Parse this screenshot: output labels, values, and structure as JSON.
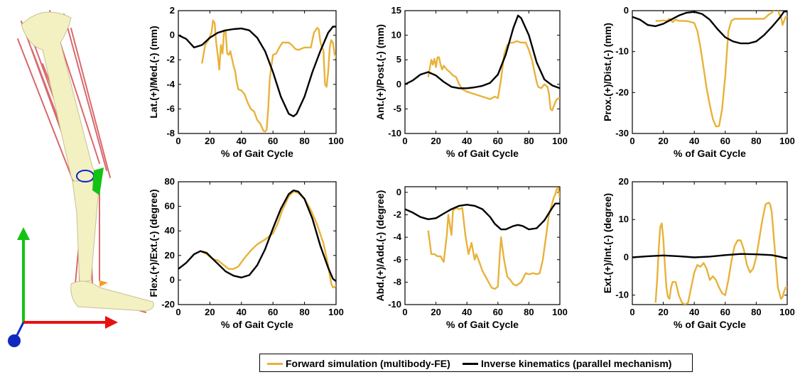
{
  "colors": {
    "forward": "#e8b23a",
    "inverse": "#000000",
    "axis_x_arrow": "#e81010",
    "axis_y_arrow": "#12c312",
    "axis_origin": "#1028c0",
    "bone": "#f3f0c2",
    "muscle": "#d9686c"
  },
  "legend": {
    "forward_label": "Forward simulation (multibody-FE)",
    "inverse_label": "Inverse kinematics (parallel mechanism)"
  },
  "chart_data": [
    {
      "type": "line",
      "title": "",
      "xlabel": "% of Gait Cycle",
      "ylabel": "Lat.(+)/Med.(-) (mm)",
      "xlim": [
        0,
        100
      ],
      "ylim": [
        -8,
        2
      ],
      "xticks": [
        "0",
        "20",
        "40",
        "60",
        "80",
        "100"
      ],
      "yticks": [
        "2",
        "0",
        "-2",
        "-4",
        "-6",
        "-8"
      ],
      "series": [
        {
          "name": "Forward simulation (multibody-FE)",
          "color": "#e8b23a",
          "x": [
            15,
            17,
            19,
            21,
            22,
            23,
            24,
            25,
            26,
            27,
            28,
            29,
            30,
            31,
            32,
            33,
            34,
            35,
            36,
            37,
            38,
            40,
            42,
            44,
            46,
            48,
            50,
            52,
            54,
            55,
            56,
            57,
            58,
            59,
            60,
            62,
            64,
            66,
            68,
            70,
            72,
            74,
            76,
            78,
            80,
            82,
            84,
            86,
            88,
            89,
            90,
            91,
            92,
            93,
            94,
            95,
            96,
            97,
            98,
            99,
            100
          ],
          "y": [
            -2.3,
            -0.8,
            -0.4,
            0.2,
            1.2,
            1.0,
            -0.6,
            -1.6,
            -2.8,
            -0.8,
            -1.5,
            0.4,
            0.3,
            -1.5,
            -1.6,
            -1.3,
            -1.9,
            -2.5,
            -2.9,
            -3.8,
            -4.4,
            -4.5,
            -4.8,
            -5.5,
            -6.0,
            -6.2,
            -6.9,
            -7.2,
            -7.8,
            -7.85,
            -7.7,
            -6.0,
            -3.5,
            -2.5,
            -1.6,
            -1.5,
            -1.0,
            -0.6,
            -0.6,
            -0.6,
            -0.8,
            -1.1,
            -1.2,
            -1.1,
            -1.0,
            -1.0,
            -1.0,
            0.2,
            0.6,
            0.5,
            -0.5,
            -1.0,
            -1.2,
            -4.0,
            -4.2,
            -3.0,
            -1.0,
            -0.4,
            -0.6,
            -1.5,
            -1.8
          ]
        },
        {
          "name": "Inverse kinematics (parallel mechanism)",
          "color": "#000000",
          "x": [
            0,
            5,
            10,
            15,
            20,
            25,
            30,
            35,
            40,
            45,
            50,
            55,
            60,
            65,
            70,
            73,
            75,
            80,
            85,
            90,
            95,
            98,
            100
          ],
          "y": [
            0.0,
            -0.3,
            -1.0,
            -0.8,
            -0.2,
            0.2,
            0.4,
            0.5,
            0.55,
            0.4,
            -0.2,
            -1.3,
            -3.0,
            -5.0,
            -6.4,
            -6.6,
            -6.4,
            -5.0,
            -3.0,
            -1.3,
            0.2,
            0.7,
            0.7
          ]
        }
      ]
    },
    {
      "type": "line",
      "title": "",
      "xlabel": "% of Gait Cycle",
      "ylabel": "Ant.(+)/Post.(-) (mm)",
      "xlim": [
        0,
        100
      ],
      "ylim": [
        -10,
        15
      ],
      "xticks": [
        "0",
        "20",
        "40",
        "60",
        "80",
        "100"
      ],
      "yticks": [
        "15",
        "10",
        "5",
        "0",
        "-5",
        "-10"
      ],
      "series": [
        {
          "name": "Forward simulation (multibody-FE)",
          "color": "#e8b23a",
          "x": [
            15,
            17,
            18,
            19,
            20,
            21,
            22,
            23,
            24,
            25,
            27,
            29,
            31,
            33,
            35,
            37,
            40,
            45,
            50,
            55,
            58,
            60,
            62,
            64,
            66,
            68,
            70,
            72,
            75,
            78,
            80,
            82,
            84,
            85,
            86,
            88,
            90,
            92,
            93,
            94,
            95,
            96,
            98,
            100
          ],
          "y": [
            1.5,
            5.0,
            4.0,
            5.2,
            3.5,
            5.5,
            5.5,
            4.0,
            3.0,
            3.8,
            3.0,
            2.5,
            1.8,
            1.5,
            0.0,
            -1.0,
            -1.5,
            -2.0,
            -2.5,
            -3.0,
            -2.5,
            -2.8,
            1.0,
            6.0,
            8.0,
            8.5,
            8.5,
            8.8,
            8.5,
            8.5,
            7.0,
            5.0,
            2.0,
            0.5,
            -0.5,
            -0.8,
            0.0,
            -0.5,
            -2.0,
            -5.0,
            -5.3,
            -4.5,
            -3.0,
            -2.8
          ]
        },
        {
          "name": "Inverse kinematics (parallel mechanism)",
          "color": "#000000",
          "x": [
            0,
            5,
            10,
            15,
            20,
            25,
            30,
            35,
            40,
            45,
            50,
            55,
            60,
            65,
            70,
            73,
            75,
            80,
            85,
            90,
            95,
            100
          ],
          "y": [
            0.0,
            0.8,
            2.0,
            2.5,
            1.8,
            0.5,
            -0.5,
            -0.8,
            -0.8,
            -0.6,
            -0.3,
            0.3,
            2.0,
            6.0,
            11.5,
            14.0,
            13.5,
            10.0,
            4.5,
            1.0,
            -0.2,
            -0.8
          ]
        }
      ]
    },
    {
      "type": "line",
      "title": "",
      "xlabel": "% of Gait Cycle",
      "ylabel": "Prox.(+)/Dist.(-) (mm)",
      "xlim": [
        0,
        100
      ],
      "ylim": [
        -30,
        0
      ],
      "xticks": [
        "0",
        "20",
        "40",
        "60",
        "80",
        "100"
      ],
      "yticks": [
        "0",
        "-10",
        "-20",
        "-30"
      ],
      "series": [
        {
          "name": "Forward simulation (multibody-FE)",
          "color": "#e8b23a",
          "x": [
            15,
            18,
            20,
            22,
            24,
            26,
            28,
            30,
            33,
            36,
            40,
            42,
            44,
            46,
            48,
            50,
            52,
            54,
            56,
            58,
            60,
            62,
            64,
            66,
            70,
            75,
            80,
            85,
            88,
            90,
            92,
            94,
            95,
            96,
            97,
            98,
            99,
            100
          ],
          "y": [
            -2.5,
            -2.5,
            -2.4,
            -2.5,
            -2.0,
            -2.8,
            -2.2,
            -2.5,
            -2.5,
            -2.6,
            -3.0,
            -5.0,
            -9.0,
            -14.0,
            -19.0,
            -23.0,
            -26.5,
            -28.3,
            -28.2,
            -24.0,
            -16.0,
            -5.0,
            -2.5,
            -2.0,
            -2.0,
            -2.0,
            -2.0,
            -2.0,
            -1.0,
            -0.5,
            0.2,
            0.3,
            -1.0,
            -1.5,
            -3.5,
            -2.5,
            -1.5,
            -1.5
          ]
        },
        {
          "name": "Inverse kinematics (parallel mechanism)",
          "color": "#000000",
          "x": [
            0,
            5,
            10,
            15,
            20,
            25,
            30,
            35,
            40,
            45,
            50,
            55,
            60,
            65,
            70,
            75,
            80,
            85,
            90,
            95,
            98,
            100
          ],
          "y": [
            -1.5,
            -2.2,
            -3.5,
            -3.8,
            -3.2,
            -2.2,
            -1.2,
            -0.5,
            -0.3,
            -0.8,
            -2.2,
            -4.5,
            -6.5,
            -7.5,
            -8.0,
            -8.0,
            -7.5,
            -6.0,
            -4.0,
            -1.8,
            -0.2,
            -0.2
          ]
        }
      ]
    },
    {
      "type": "line",
      "title": "",
      "xlabel": "% of Gait Cycle",
      "ylabel": "Flex.(+)/Ext.(-) (degree)",
      "xlim": [
        0,
        100
      ],
      "ylim": [
        -20,
        80
      ],
      "xticks": [
        "0",
        "20",
        "40",
        "60",
        "80",
        "100"
      ],
      "yticks": [
        "80",
        "60",
        "40",
        "20",
        "0",
        "-20"
      ],
      "series": [
        {
          "name": "Forward simulation (multibody-FE)",
          "color": "#e8b23a",
          "x": [
            15,
            18,
            20,
            22,
            25,
            28,
            30,
            32,
            35,
            38,
            42,
            46,
            50,
            55,
            60,
            63,
            66,
            70,
            73,
            76,
            80,
            84,
            88,
            92,
            95,
            96,
            97,
            98,
            99,
            100
          ],
          "y": [
            23,
            21,
            19,
            17,
            16,
            13,
            11,
            9,
            9,
            11,
            18,
            24,
            29,
            33,
            38,
            46,
            57,
            68,
            72,
            71,
            66,
            57,
            45,
            30,
            12,
            4,
            -3,
            -6,
            -6,
            -4
          ]
        },
        {
          "name": "Inverse kinematics (parallel mechanism)",
          "color": "#000000",
          "x": [
            0,
            5,
            10,
            14,
            18,
            22,
            26,
            30,
            35,
            40,
            45,
            50,
            55,
            60,
            65,
            70,
            73,
            76,
            80,
            85,
            90,
            95,
            98,
            100
          ],
          "y": [
            9,
            14,
            21,
            23.5,
            22,
            17,
            12,
            7,
            3.5,
            2,
            4,
            12,
            25,
            42,
            58,
            70,
            73,
            72,
            66,
            50,
            28,
            10,
            1,
            -1
          ]
        }
      ]
    },
    {
      "type": "line",
      "title": "",
      "xlabel": "% of Gait Cycle",
      "ylabel": "Abd.(+)/Add.(-) (degree)",
      "xlim": [
        0,
        100
      ],
      "ylim": [
        -10,
        0.5
      ],
      "xticks": [
        "0",
        "20",
        "40",
        "60",
        "80",
        "100"
      ],
      "yticks": [
        "0",
        "-2",
        "-4",
        "-6",
        "-8",
        "-10"
      ],
      "series": [
        {
          "name": "Forward simulation (multibody-FE)",
          "color": "#e8b23a",
          "x": [
            15,
            17,
            19,
            21,
            23,
            25,
            26,
            27,
            28,
            30,
            31,
            33,
            35,
            37,
            39,
            41,
            43,
            45,
            46,
            48,
            50,
            52,
            54,
            56,
            58,
            60,
            61,
            62,
            63,
            64,
            66,
            68,
            70,
            72,
            75,
            78,
            80,
            83,
            85,
            87,
            89,
            91,
            93,
            95,
            96,
            97,
            98,
            99,
            100
          ],
          "y": [
            -3.4,
            -5.5,
            -5.5,
            -5.7,
            -5.7,
            -6.2,
            -5.0,
            -3.8,
            -2.0,
            -3.8,
            -1.6,
            -1.4,
            -1.5,
            -1.4,
            -3.8,
            -5.5,
            -4.5,
            -6.0,
            -5.5,
            -6.2,
            -7.0,
            -7.5,
            -8.0,
            -8.5,
            -8.6,
            -8.4,
            -6.0,
            -4.0,
            -5.0,
            -6.0,
            -7.5,
            -7.8,
            -8.2,
            -8.3,
            -8.0,
            -7.2,
            -7.3,
            -7.2,
            -7.3,
            -7.2,
            -6.0,
            -4.0,
            -2.0,
            -1.0,
            -0.5,
            -0.2,
            0.3,
            0.4,
            -0.5
          ]
        },
        {
          "name": "Inverse kinematics (parallel mechanism)",
          "color": "#000000",
          "x": [
            0,
            5,
            10,
            15,
            20,
            25,
            30,
            35,
            40,
            45,
            50,
            55,
            58,
            62,
            65,
            70,
            73,
            76,
            80,
            85,
            90,
            95,
            97,
            100
          ],
          "y": [
            -1.5,
            -1.8,
            -2.2,
            -2.4,
            -2.3,
            -1.9,
            -1.5,
            -1.2,
            -1.1,
            -1.2,
            -1.5,
            -2.2,
            -2.8,
            -3.3,
            -3.3,
            -3.0,
            -2.9,
            -3.0,
            -3.3,
            -3.2,
            -2.5,
            -1.4,
            -1.0,
            -1.0
          ]
        }
      ]
    },
    {
      "type": "line",
      "title": "",
      "xlabel": "% of Gait Cycle",
      "ylabel": "Ext.(+)/Int.(-) (degree)",
      "xlim": [
        0,
        100
      ],
      "ylim": [
        -12.5,
        20
      ],
      "xticks": [
        "0",
        "20",
        "40",
        "60",
        "80",
        "100"
      ],
      "yticks": [
        "20",
        "10",
        "0",
        "-10"
      ],
      "series": [
        {
          "name": "Forward simulation (multibody-FE)",
          "color": "#e8b23a",
          "x": [
            15,
            16,
            17,
            18,
            19,
            20,
            21,
            22,
            23,
            24,
            25,
            26,
            28,
            30,
            32,
            34,
            36,
            38,
            40,
            42,
            44,
            46,
            48,
            50,
            52,
            54,
            56,
            58,
            60,
            62,
            64,
            66,
            68,
            70,
            72,
            74,
            76,
            78,
            80,
            82,
            84,
            86,
            88,
            89,
            90,
            92,
            94,
            96,
            97,
            98,
            99,
            100
          ],
          "y": [
            -12,
            -6,
            2,
            8,
            9,
            5,
            -2,
            -8,
            -10.5,
            -11,
            -8,
            -6.5,
            -6.5,
            -10,
            -12,
            -12.5,
            -12,
            -8,
            -4,
            -2,
            -2.5,
            -1.5,
            -3,
            -6,
            -5,
            -6,
            -8,
            -9.5,
            -10,
            -6,
            -1,
            3,
            4.5,
            4.5,
            2,
            -2,
            -4,
            -3,
            0,
            5,
            10,
            14,
            14.5,
            14,
            12,
            2,
            -8,
            -11,
            -10.5,
            -9,
            -8,
            -8
          ]
        },
        {
          "name": "Inverse kinematics (parallel mechanism)",
          "color": "#000000",
          "x": [
            0,
            10,
            20,
            30,
            40,
            50,
            60,
            70,
            80,
            90,
            95,
            100
          ],
          "y": [
            0.0,
            0.3,
            0.5,
            0.3,
            0.0,
            0.2,
            0.6,
            0.9,
            0.8,
            0.6,
            0.2,
            -0.3
          ]
        }
      ]
    }
  ]
}
